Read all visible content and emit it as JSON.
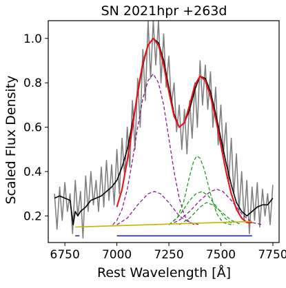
{
  "chart_data": {
    "type": "line",
    "title": "SN 2021hpr  +263d",
    "xlabel": "Rest Wavelength [Å]",
    "ylabel": "Scaled Flux Density",
    "xlim": [
      6670,
      7780
    ],
    "ylim": [
      0.08,
      1.08
    ],
    "xticks": [
      6750,
      7000,
      7250,
      7500,
      7750
    ],
    "xtick_labels": [
      "6750",
      "7000",
      "7250",
      "7500",
      "7750"
    ],
    "yticks": [
      0.2,
      0.4,
      0.6,
      0.8,
      1.0
    ],
    "ytick_labels": [
      "0.2",
      "0.4",
      "0.6",
      "0.8",
      "1.0"
    ],
    "grid": false,
    "legend": "none",
    "colors": {
      "raw": "#808080",
      "smoothed": "#000000",
      "total_fit": "#e8141e",
      "purple_gauss": "#8b1a8b",
      "green_gauss": "#1e9b1e",
      "continuum": "#c8b400",
      "blue_range": "#1f1fe0"
    },
    "series": [
      {
        "style": "raw",
        "x": [
          6700,
          6712,
          6725,
          6737,
          6750,
          6762,
          6775,
          6787,
          6800,
          6812,
          6825,
          6837,
          6850,
          6862,
          6875,
          6887,
          6900,
          6912,
          6925,
          6937,
          6950,
          6962,
          6975,
          6987,
          7000,
          7012,
          7025,
          7037,
          7050,
          7062,
          7075,
          7087,
          7100,
          7112,
          7125,
          7137,
          7150,
          7162,
          7175,
          7187,
          7200,
          7212,
          7225,
          7237,
          7250,
          7262,
          7275,
          7287,
          7300,
          7312,
          7325,
          7337,
          7350,
          7362,
          7375,
          7387,
          7400,
          7412,
          7425,
          7437,
          7450,
          7462,
          7475,
          7487,
          7500,
          7512,
          7525,
          7537,
          7550,
          7562,
          7575,
          7587,
          7600,
          7612,
          7625,
          7637,
          7650,
          7662,
          7675,
          7687,
          7700,
          7712,
          7725,
          7737,
          7750
        ],
        "y": [
          0.3,
          0.14,
          0.33,
          0.18,
          0.35,
          0.22,
          0.3,
          0.12,
          0.36,
          0.2,
          0.31,
          0.1,
          0.38,
          0.22,
          0.4,
          0.25,
          0.36,
          0.22,
          0.42,
          0.24,
          0.45,
          0.27,
          0.43,
          0.25,
          0.5,
          0.3,
          0.55,
          0.38,
          0.6,
          0.42,
          0.72,
          0.5,
          0.82,
          0.6,
          0.95,
          0.72,
          1.08,
          0.82,
          1.08,
          0.88,
          1.08,
          0.8,
          1.02,
          0.78,
          0.92,
          0.7,
          0.8,
          0.58,
          0.7,
          0.5,
          0.68,
          0.48,
          0.72,
          0.55,
          0.8,
          0.6,
          0.9,
          0.7,
          0.88,
          0.68,
          0.85,
          0.6,
          0.78,
          0.52,
          0.7,
          0.48,
          0.62,
          0.35,
          0.55,
          0.3,
          0.48,
          0.22,
          0.4,
          0.18,
          0.36,
          0.12,
          0.33,
          0.18,
          0.35,
          0.15,
          0.32,
          0.2,
          0.3,
          0.16,
          0.34
        ]
      },
      {
        "style": "smoothed",
        "x": [
          6700,
          6725,
          6750,
          6775,
          6790,
          6800,
          6812,
          6825,
          6850,
          6875,
          6900,
          6925,
          6950,
          6975,
          7000,
          7025,
          7050,
          7075,
          7100,
          7125,
          7150,
          7175,
          7200,
          7225,
          7250,
          7275,
          7300,
          7325,
          7350,
          7375,
          7400,
          7425,
          7450,
          7475,
          7500,
          7525,
          7550,
          7575,
          7600,
          7625,
          7650,
          7675,
          7700,
          7725,
          7750
        ],
        "y": [
          0.28,
          0.29,
          0.28,
          0.27,
          0.16,
          0.22,
          0.2,
          0.22,
          0.24,
          0.27,
          0.28,
          0.29,
          0.31,
          0.33,
          0.36,
          0.42,
          0.5,
          0.62,
          0.75,
          0.88,
          0.97,
          1.0,
          0.98,
          0.9,
          0.78,
          0.66,
          0.6,
          0.62,
          0.68,
          0.77,
          0.83,
          0.82,
          0.76,
          0.66,
          0.55,
          0.44,
          0.34,
          0.26,
          0.22,
          0.2,
          0.22,
          0.24,
          0.25,
          0.25,
          0.28
        ]
      },
      {
        "style": "total_fit",
        "x": [
          7000,
          7025,
          7050,
          7075,
          7100,
          7125,
          7150,
          7175,
          7200,
          7225,
          7250,
          7275,
          7300,
          7325,
          7350,
          7375,
          7400,
          7425,
          7450,
          7475,
          7500,
          7525,
          7550,
          7575,
          7600,
          7625,
          7650
        ],
        "y": [
          0.24,
          0.32,
          0.45,
          0.6,
          0.76,
          0.89,
          0.97,
          1.0,
          0.97,
          0.88,
          0.76,
          0.65,
          0.6,
          0.62,
          0.7,
          0.79,
          0.83,
          0.81,
          0.74,
          0.64,
          0.52,
          0.4,
          0.3,
          0.23,
          0.19,
          0.17,
          0.17
        ]
      },
      {
        "style": "purple_gauss",
        "x": [
          6980,
          7000,
          7025,
          7050,
          7075,
          7100,
          7125,
          7150,
          7175,
          7200,
          7225,
          7250,
          7275,
          7300,
          7325,
          7350,
          7375
        ],
        "y": [
          0.16,
          0.18,
          0.23,
          0.32,
          0.45,
          0.6,
          0.73,
          0.81,
          0.84,
          0.8,
          0.7,
          0.55,
          0.4,
          0.28,
          0.2,
          0.17,
          0.16
        ]
      },
      {
        "style": "purple_gauss",
        "x": [
          7000,
          7050,
          7100,
          7150,
          7180,
          7210,
          7250,
          7300,
          7350,
          7400
        ],
        "y": [
          0.16,
          0.19,
          0.25,
          0.3,
          0.31,
          0.3,
          0.26,
          0.2,
          0.17,
          0.16
        ]
      },
      {
        "style": "purple_gauss",
        "x": [
          7250,
          7300,
          7350,
          7400,
          7450,
          7480,
          7510,
          7550,
          7600,
          7650,
          7700
        ],
        "y": [
          0.16,
          0.18,
          0.22,
          0.27,
          0.31,
          0.32,
          0.31,
          0.27,
          0.21,
          0.17,
          0.16
        ]
      },
      {
        "style": "green_gauss",
        "x": [
          7250,
          7290,
          7320,
          7350,
          7370,
          7385,
          7400,
          7420,
          7450,
          7480,
          7510,
          7550
        ],
        "y": [
          0.16,
          0.19,
          0.26,
          0.38,
          0.45,
          0.47,
          0.46,
          0.41,
          0.3,
          0.21,
          0.17,
          0.16
        ]
      },
      {
        "style": "green_gauss",
        "x": [
          7250,
          7300,
          7350,
          7380,
          7410,
          7440,
          7480,
          7520,
          7560
        ],
        "y": [
          0.16,
          0.2,
          0.27,
          0.3,
          0.31,
          0.29,
          0.24,
          0.19,
          0.16
        ]
      },
      {
        "style": "green_gauss",
        "x": [
          7300,
          7350,
          7400,
          7430,
          7460,
          7500,
          7550,
          7600
        ],
        "y": [
          0.16,
          0.19,
          0.24,
          0.26,
          0.25,
          0.22,
          0.18,
          0.16
        ]
      },
      {
        "style": "continuum",
        "x": [
          6800,
          7650
        ],
        "y": [
          0.15,
          0.175
        ]
      },
      {
        "style": "blue_range",
        "x": [
          6800,
          6820
        ],
        "y": [
          0.11,
          0.11
        ]
      },
      {
        "style": "blue_range",
        "x": [
          7000,
          7650
        ],
        "y": [
          0.11,
          0.11
        ]
      }
    ]
  }
}
